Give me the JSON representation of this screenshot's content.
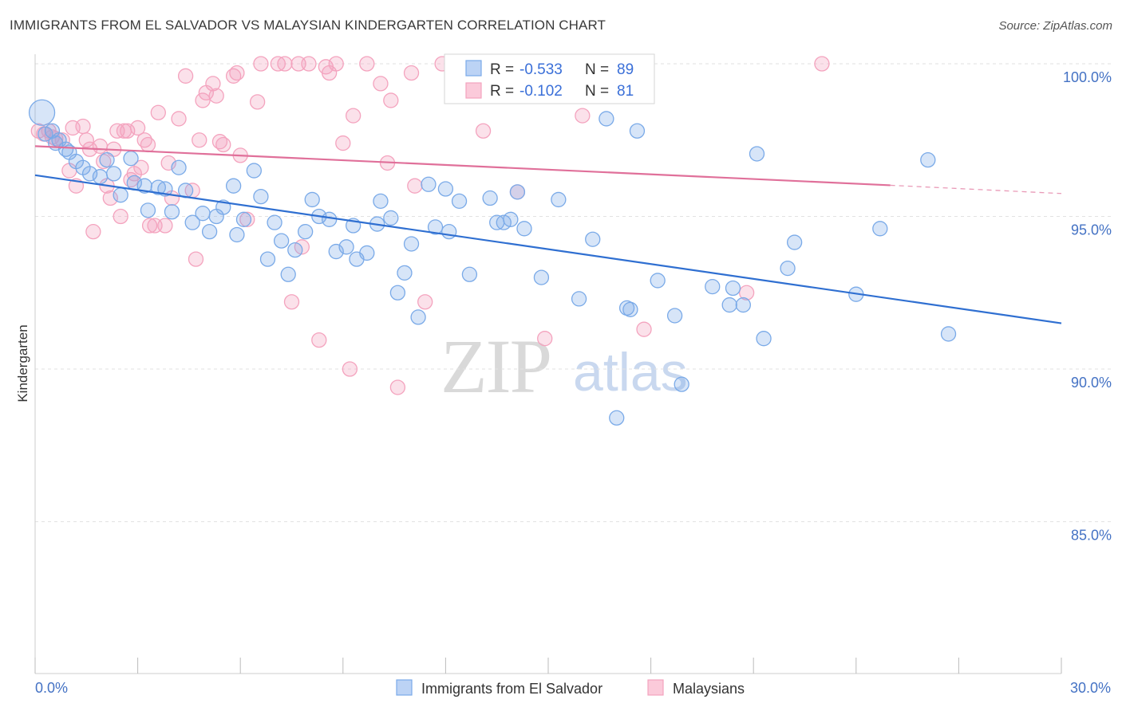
{
  "title": "IMMIGRANTS FROM EL SALVADOR VS MALAYSIAN KINDERGARTEN CORRELATION CHART",
  "source": "Source: ZipAtlas.com",
  "watermark": {
    "zip": "ZIP",
    "atlas": "atlas"
  },
  "chart_data": {
    "type": "scatter",
    "ylabel": "Kindergarten",
    "xlabel": "",
    "xlim": [
      0,
      30
    ],
    "ylim": [
      80.5,
      100.9
    ],
    "x_tick_labels": [
      "0.0%",
      "30.0%"
    ],
    "y_ticks": [
      {
        "value": 100,
        "label": "100.0%"
      },
      {
        "value": 95,
        "label": "95.0%"
      },
      {
        "value": 90,
        "label": "90.0%"
      },
      {
        "value": 85,
        "label": "85.0%"
      }
    ],
    "grid": true,
    "legend_position": "top-center",
    "series": [
      {
        "name": "Immigrants from El Salvador",
        "color": "#7aaae8",
        "line_color": "#2f6fd1",
        "R": "-0.533",
        "N": "89",
        "trend": {
          "x": [
            0,
            30
          ],
          "y": [
            96.35,
            91.5
          ]
        },
        "points": [
          {
            "x": 0.2,
            "y": 98.4,
            "big": true
          },
          {
            "x": 0.3,
            "y": 97.7
          },
          {
            "x": 0.5,
            "y": 97.8
          },
          {
            "x": 0.6,
            "y": 97.4
          },
          {
            "x": 0.7,
            "y": 97.5
          },
          {
            "x": 0.9,
            "y": 97.2
          },
          {
            "x": 1.0,
            "y": 97.1
          },
          {
            "x": 1.2,
            "y": 96.8
          },
          {
            "x": 1.4,
            "y": 96.6
          },
          {
            "x": 1.6,
            "y": 96.4
          },
          {
            "x": 1.9,
            "y": 96.3
          },
          {
            "x": 2.1,
            "y": 96.85
          },
          {
            "x": 2.3,
            "y": 96.4
          },
          {
            "x": 2.5,
            "y": 95.7
          },
          {
            "x": 2.8,
            "y": 96.9
          },
          {
            "x": 2.9,
            "y": 96.1
          },
          {
            "x": 3.2,
            "y": 96.0
          },
          {
            "x": 3.3,
            "y": 95.2
          },
          {
            "x": 3.6,
            "y": 95.95
          },
          {
            "x": 3.8,
            "y": 95.9
          },
          {
            "x": 4.0,
            "y": 95.15
          },
          {
            "x": 4.2,
            "y": 96.6
          },
          {
            "x": 4.4,
            "y": 95.85
          },
          {
            "x": 4.6,
            "y": 94.8
          },
          {
            "x": 4.9,
            "y": 95.1
          },
          {
            "x": 5.1,
            "y": 94.5
          },
          {
            "x": 5.3,
            "y": 95.0
          },
          {
            "x": 5.5,
            "y": 95.3
          },
          {
            "x": 5.8,
            "y": 96.0
          },
          {
            "x": 5.9,
            "y": 94.4
          },
          {
            "x": 6.1,
            "y": 94.9
          },
          {
            "x": 6.4,
            "y": 96.5
          },
          {
            "x": 6.6,
            "y": 95.65
          },
          {
            "x": 6.8,
            "y": 93.6
          },
          {
            "x": 7.0,
            "y": 94.8
          },
          {
            "x": 7.2,
            "y": 94.2
          },
          {
            "x": 7.4,
            "y": 93.1
          },
          {
            "x": 7.6,
            "y": 93.9
          },
          {
            "x": 7.9,
            "y": 94.5
          },
          {
            "x": 8.1,
            "y": 95.55
          },
          {
            "x": 8.3,
            "y": 95.0
          },
          {
            "x": 8.6,
            "y": 94.9
          },
          {
            "x": 8.8,
            "y": 93.85
          },
          {
            "x": 9.1,
            "y": 94.0
          },
          {
            "x": 9.3,
            "y": 94.7
          },
          {
            "x": 9.4,
            "y": 93.6
          },
          {
            "x": 9.7,
            "y": 93.8
          },
          {
            "x": 10.0,
            "y": 94.75
          },
          {
            "x": 10.1,
            "y": 95.5
          },
          {
            "x": 10.4,
            "y": 94.95
          },
          {
            "x": 10.6,
            "y": 92.5
          },
          {
            "x": 10.8,
            "y": 93.15
          },
          {
            "x": 11.0,
            "y": 94.1
          },
          {
            "x": 11.2,
            "y": 91.7
          },
          {
            "x": 11.5,
            "y": 96.05
          },
          {
            "x": 11.7,
            "y": 94.65
          },
          {
            "x": 12.0,
            "y": 95.9
          },
          {
            "x": 12.1,
            "y": 94.5
          },
          {
            "x": 12.4,
            "y": 95.5
          },
          {
            "x": 12.7,
            "y": 93.1
          },
          {
            "x": 13.1,
            "y": 99.7
          },
          {
            "x": 13.3,
            "y": 95.6
          },
          {
            "x": 13.5,
            "y": 94.8
          },
          {
            "x": 13.7,
            "y": 94.8
          },
          {
            "x": 13.9,
            "y": 94.9
          },
          {
            "x": 14.1,
            "y": 95.8
          },
          {
            "x": 14.3,
            "y": 94.6
          },
          {
            "x": 14.8,
            "y": 93.0
          },
          {
            "x": 15.3,
            "y": 95.55
          },
          {
            "x": 15.9,
            "y": 92.3
          },
          {
            "x": 16.3,
            "y": 94.25
          },
          {
            "x": 16.7,
            "y": 98.2
          },
          {
            "x": 17.0,
            "y": 88.4
          },
          {
            "x": 17.3,
            "y": 92.0
          },
          {
            "x": 17.4,
            "y": 91.95
          },
          {
            "x": 17.6,
            "y": 97.8
          },
          {
            "x": 18.2,
            "y": 92.9
          },
          {
            "x": 18.7,
            "y": 91.75
          },
          {
            "x": 18.9,
            "y": 89.5
          },
          {
            "x": 19.8,
            "y": 92.7
          },
          {
            "x": 20.3,
            "y": 92.1
          },
          {
            "x": 20.4,
            "y": 92.65
          },
          {
            "x": 20.7,
            "y": 92.1
          },
          {
            "x": 21.1,
            "y": 97.05
          },
          {
            "x": 21.3,
            "y": 91.0
          },
          {
            "x": 22.0,
            "y": 93.3
          },
          {
            "x": 22.2,
            "y": 94.15
          },
          {
            "x": 24.0,
            "y": 92.45
          },
          {
            "x": 24.7,
            "y": 94.6
          },
          {
            "x": 26.1,
            "y": 96.85
          },
          {
            "x": 26.7,
            "y": 91.15
          }
        ]
      },
      {
        "name": "Malaysians",
        "color": "#f4a3be",
        "line_color": "#e0709a",
        "R": "-0.102",
        "N": "81",
        "trend": {
          "x": [
            0,
            25.0
          ],
          "y": [
            97.3,
            96.02
          ]
        },
        "trend_dashed": {
          "x": [
            25.0,
            30
          ],
          "y": [
            96.02,
            95.75
          ]
        },
        "points": [
          {
            "x": 0.1,
            "y": 97.8
          },
          {
            "x": 0.25,
            "y": 97.7
          },
          {
            "x": 0.4,
            "y": 97.8
          },
          {
            "x": 0.5,
            "y": 97.6
          },
          {
            "x": 0.6,
            "y": 97.55
          },
          {
            "x": 0.8,
            "y": 97.5
          },
          {
            "x": 1.0,
            "y": 96.5
          },
          {
            "x": 1.1,
            "y": 97.9
          },
          {
            "x": 1.2,
            "y": 96.0
          },
          {
            "x": 1.4,
            "y": 97.95
          },
          {
            "x": 1.5,
            "y": 97.5
          },
          {
            "x": 1.6,
            "y": 97.2
          },
          {
            "x": 1.7,
            "y": 94.5
          },
          {
            "x": 1.9,
            "y": 97.3
          },
          {
            "x": 2.0,
            "y": 96.8
          },
          {
            "x": 2.1,
            "y": 96.0
          },
          {
            "x": 2.2,
            "y": 95.6
          },
          {
            "x": 2.3,
            "y": 97.2
          },
          {
            "x": 2.4,
            "y": 97.8
          },
          {
            "x": 2.5,
            "y": 95.0
          },
          {
            "x": 2.6,
            "y": 97.8
          },
          {
            "x": 2.7,
            "y": 97.8
          },
          {
            "x": 2.8,
            "y": 96.2
          },
          {
            "x": 2.9,
            "y": 96.4
          },
          {
            "x": 3.0,
            "y": 97.9
          },
          {
            "x": 3.1,
            "y": 96.6
          },
          {
            "x": 3.2,
            "y": 97.5
          },
          {
            "x": 3.3,
            "y": 97.35
          },
          {
            "x": 3.35,
            "y": 94.7
          },
          {
            "x": 3.5,
            "y": 94.7
          },
          {
            "x": 3.6,
            "y": 98.4
          },
          {
            "x": 3.8,
            "y": 94.7
          },
          {
            "x": 3.9,
            "y": 96.75
          },
          {
            "x": 4.0,
            "y": 95.6
          },
          {
            "x": 4.2,
            "y": 98.2
          },
          {
            "x": 4.4,
            "y": 99.6
          },
          {
            "x": 4.6,
            "y": 95.85
          },
          {
            "x": 4.7,
            "y": 93.6
          },
          {
            "x": 4.8,
            "y": 97.5
          },
          {
            "x": 4.9,
            "y": 98.8
          },
          {
            "x": 5.0,
            "y": 99.05
          },
          {
            "x": 5.2,
            "y": 99.35
          },
          {
            "x": 5.3,
            "y": 98.95
          },
          {
            "x": 5.4,
            "y": 97.45
          },
          {
            "x": 5.5,
            "y": 97.35
          },
          {
            "x": 5.8,
            "y": 99.6
          },
          {
            "x": 5.9,
            "y": 99.7
          },
          {
            "x": 6.0,
            "y": 97.0
          },
          {
            "x": 6.2,
            "y": 94.9
          },
          {
            "x": 6.5,
            "y": 98.75
          },
          {
            "x": 6.6,
            "y": 100.0
          },
          {
            "x": 7.1,
            "y": 100.0
          },
          {
            "x": 7.3,
            "y": 100.0
          },
          {
            "x": 7.5,
            "y": 92.2
          },
          {
            "x": 7.7,
            "y": 100.0
          },
          {
            "x": 7.8,
            "y": 94.0
          },
          {
            "x": 8.0,
            "y": 100.0
          },
          {
            "x": 8.3,
            "y": 90.95
          },
          {
            "x": 8.5,
            "y": 99.9
          },
          {
            "x": 8.6,
            "y": 99.7
          },
          {
            "x": 8.8,
            "y": 100.0
          },
          {
            "x": 9.0,
            "y": 97.4
          },
          {
            "x": 9.2,
            "y": 90.0
          },
          {
            "x": 9.3,
            "y": 98.3
          },
          {
            "x": 9.7,
            "y": 100.0
          },
          {
            "x": 10.1,
            "y": 99.35
          },
          {
            "x": 10.3,
            "y": 96.75
          },
          {
            "x": 10.4,
            "y": 98.8
          },
          {
            "x": 10.6,
            "y": 89.4
          },
          {
            "x": 11.0,
            "y": 99.7
          },
          {
            "x": 11.1,
            "y": 96.0
          },
          {
            "x": 11.4,
            "y": 92.2
          },
          {
            "x": 11.9,
            "y": 100.0
          },
          {
            "x": 13.1,
            "y": 97.8
          },
          {
            "x": 14.1,
            "y": 95.8
          },
          {
            "x": 14.4,
            "y": 100.0
          },
          {
            "x": 14.9,
            "y": 91.0
          },
          {
            "x": 15.5,
            "y": 100.0
          },
          {
            "x": 16.0,
            "y": 98.3
          },
          {
            "x": 17.8,
            "y": 91.3
          },
          {
            "x": 20.8,
            "y": 92.5
          },
          {
            "x": 23.0,
            "y": 100.0
          }
        ]
      }
    ]
  }
}
